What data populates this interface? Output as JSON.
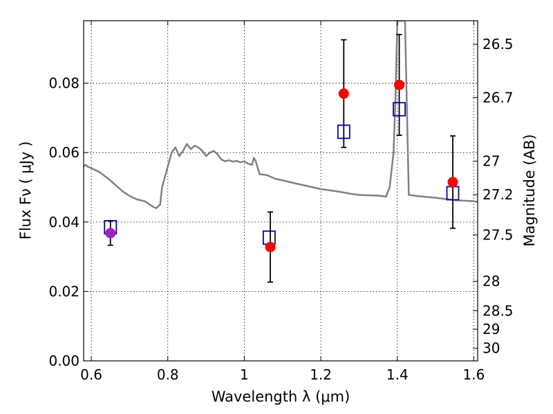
{
  "chart_data": {
    "type": "scatter",
    "title": "",
    "xlabel": "Wavelength  λ (μm)",
    "ylabel": "Flux  Fν  ( μJy )",
    "y2label": "Magnitude (AB)",
    "xlim": [
      0.58,
      1.61
    ],
    "ylim": [
      0.0,
      0.098
    ],
    "grid": true,
    "x_ticks": [
      0.6,
      0.8,
      1.0,
      1.2,
      1.4,
      1.6
    ],
    "x_tick_labels": [
      "0.6",
      "0.8",
      "1",
      "1.2",
      "1.4",
      "1.6"
    ],
    "y_ticks": [
      0.0,
      0.02,
      0.04,
      0.06,
      0.08
    ],
    "y_tick_labels": [
      "0.00",
      "0.02",
      "0.04",
      "0.06",
      "0.08"
    ],
    "mag_ticks": [
      26.5,
      26.7,
      27,
      27.2,
      27.5,
      28,
      28.5,
      29,
      30
    ],
    "mag_tick_labels": [
      "26.5",
      "26.7",
      "27",
      "27.2",
      "27.5",
      "28",
      "28.5",
      "29",
      "30"
    ],
    "colors": {
      "sed": "#808080",
      "observed": "#ff0000",
      "observed_first": "#a020c0",
      "model": "#0000cc",
      "errorbar": "#000000"
    },
    "series": [
      {
        "kind": "model-sed",
        "x": [
          0.58,
          0.585,
          0.59,
          0.6,
          0.62,
          0.65,
          0.68,
          0.7,
          0.72,
          0.74,
          0.76,
          0.77,
          0.775,
          0.78,
          0.785,
          0.79,
          0.8,
          0.81,
          0.82,
          0.83,
          0.84,
          0.85,
          0.86,
          0.87,
          0.88,
          0.89,
          0.9,
          0.91,
          0.92,
          0.93,
          0.94,
          0.95,
          0.96,
          0.97,
          0.98,
          0.99,
          1.0,
          1.01,
          1.02,
          1.025,
          1.03,
          1.04,
          1.06,
          1.08,
          1.1,
          1.13,
          1.16,
          1.2,
          1.25,
          1.28,
          1.3,
          1.35,
          1.365,
          1.37,
          1.38,
          1.39,
          1.395,
          1.4,
          1.41,
          1.42,
          1.43,
          1.45,
          1.5,
          1.55,
          1.6,
          1.61
        ],
        "y": [
          0.056,
          0.0565,
          0.056,
          0.0555,
          0.0545,
          0.052,
          0.049,
          0.0475,
          0.0465,
          0.046,
          0.0445,
          0.044,
          0.0445,
          0.045,
          0.05,
          0.052,
          0.056,
          0.06,
          0.0615,
          0.059,
          0.0605,
          0.0625,
          0.061,
          0.062,
          0.0615,
          0.0605,
          0.059,
          0.06,
          0.0605,
          0.0595,
          0.058,
          0.0575,
          0.0578,
          0.0574,
          0.0576,
          0.0572,
          0.0575,
          0.0568,
          0.0565,
          0.0585,
          0.0575,
          0.0538,
          0.0535,
          0.0525,
          0.052,
          0.0512,
          0.0505,
          0.0495,
          0.0487,
          0.0481,
          0.0478,
          0.0476,
          0.0474,
          0.0473,
          0.05,
          0.06,
          0.075,
          0.098,
          0.098,
          0.098,
          0.0478,
          0.0475,
          0.047,
          0.0463,
          0.046,
          0.0458
        ]
      },
      {
        "kind": "model-photometry",
        "x": [
          0.65,
          1.065,
          1.26,
          1.405,
          1.545
        ],
        "y": [
          0.0385,
          0.0355,
          0.066,
          0.0725,
          0.0483
        ]
      },
      {
        "kind": "observed",
        "x": [
          0.65,
          1.068,
          1.26,
          1.405,
          1.545
        ],
        "y": [
          0.0368,
          0.0328,
          0.077,
          0.0795,
          0.0515
        ],
        "yerr": [
          0.0035,
          0.0101,
          0.0155,
          0.0145,
          0.0133
        ]
      }
    ]
  }
}
